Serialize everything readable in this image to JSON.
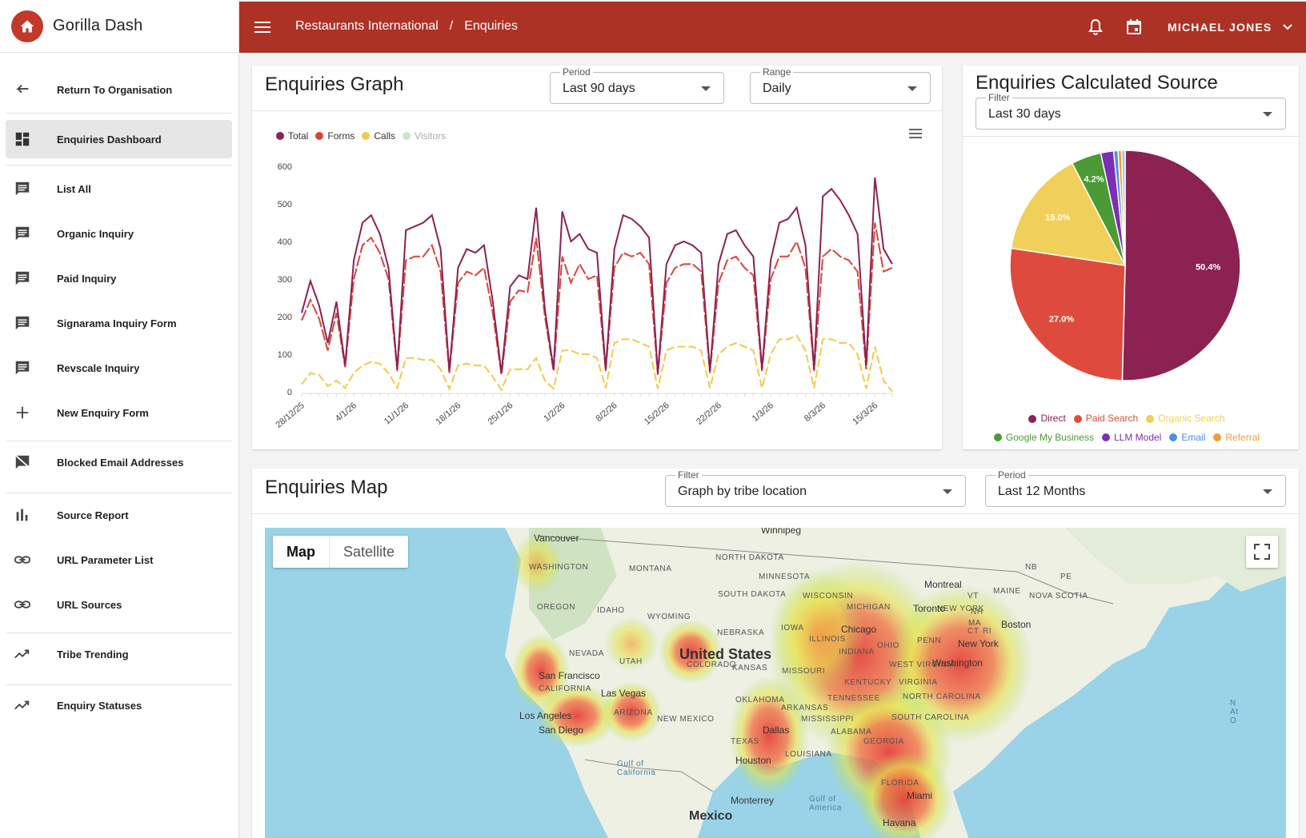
{
  "app": {
    "name": "Gorilla Dash"
  },
  "sidebar": {
    "items": [
      {
        "label": "Return To Organisation",
        "icon": "arrow-left-icon"
      },
      {
        "label": "Enquiries Dashboard",
        "icon": "dashboard-icon",
        "active": true
      },
      {
        "label": "List All",
        "icon": "comment-icon"
      },
      {
        "label": "Organic Inquiry",
        "icon": "comment-icon"
      },
      {
        "label": "Paid Inquiry",
        "icon": "comment-icon"
      },
      {
        "label": "Signarama Inquiry Form",
        "icon": "comment-icon"
      },
      {
        "label": "Revscale Inquiry",
        "icon": "comment-icon"
      },
      {
        "label": "New Enquiry Form",
        "icon": "plus-icon"
      },
      {
        "label": "Blocked Email Addresses",
        "icon": "comment-blocked-icon"
      },
      {
        "label": "Source Report",
        "icon": "bar-chart-icon"
      },
      {
        "label": "URL Parameter List",
        "icon": "link-icon"
      },
      {
        "label": "URL Sources",
        "icon": "link-icon"
      },
      {
        "label": "Tribe Trending",
        "icon": "trending-icon"
      },
      {
        "label": "Enquiry Statuses",
        "icon": "trending-icon"
      }
    ]
  },
  "header": {
    "breadcrumb": [
      "Restaurants International",
      "/",
      "Enquiries"
    ],
    "user": "MICHAEL JONES",
    "color": "#ad3226"
  },
  "graph": {
    "title": "Enquiries Graph",
    "period": {
      "label": "Period",
      "value": "Last 90 days"
    },
    "range": {
      "label": "Range",
      "value": "Daily"
    }
  },
  "source": {
    "title": "Enquiries Calculated Source",
    "filter": {
      "label": "Filter",
      "value": "Last 30 days"
    }
  },
  "map_section": {
    "title": "Enquiries Map",
    "filter": {
      "label": "Filter",
      "value": "Graph by tribe location"
    },
    "period": {
      "label": "Period",
      "value": "Last 12 Months"
    },
    "toggle": [
      "Map",
      "Satellite"
    ],
    "labels": [
      "WASHINGTON",
      "MONTANA",
      "NORTH DAKOTA",
      "MINNESOTA",
      "SOUTH DAKOTA",
      "OREGON",
      "IDAHO",
      "WYOMING",
      "WISCONSIN",
      "MICHIGAN",
      "NEBRASKA",
      "IOWA",
      "NEVADA",
      "UTAH",
      "COLORADO",
      "KANSAS",
      "MISSOURI",
      "ILLINOIS",
      "INDIANA",
      "OHIO",
      "PENN",
      "NEW YORK",
      "MAINE",
      "NOVA SCOTIA",
      "NB",
      "PE",
      "VT",
      "NH",
      "MA",
      "CT",
      "RI",
      "CALIFORNIA",
      "ARIZONA",
      "NEW MEXICO",
      "OKLAHOMA",
      "ARKANSAS",
      "MISSISSIPPI",
      "ALABAMA",
      "GEORGIA",
      "TENNESSEE",
      "KENTUCKY",
      "WEST VIRGINIA",
      "VIRGINIA",
      "NORTH CAROLINA",
      "SOUTH CAROLINA",
      "TEXAS",
      "LOUISIANA",
      "FLORIDA"
    ],
    "cities": [
      "Vancouver",
      "Winnipeg",
      "Montreal",
      "Toronto",
      "Boston",
      "New York",
      "Washington",
      "Chicago",
      "San Francisco",
      "Las Vegas",
      "Los Angeles",
      "San Diego",
      "Dallas",
      "Houston",
      "Monterrey",
      "Miami",
      "Havana"
    ],
    "big_labels": [
      "United States",
      "Mexico"
    ],
    "water_labels": [
      "Gulf of California",
      "Gulf of America",
      "N At O"
    ]
  },
  "chart_data": [
    {
      "type": "line",
      "title": "",
      "x_ticks": [
        "28/12/25",
        "4/1/26",
        "11/1/26",
        "18/1/26",
        "25/1/26",
        "1/2/26",
        "8/2/26",
        "15/2/26",
        "22/2/26",
        "1/3/26",
        "8/3/26",
        "15/3/26"
      ],
      "y_ticks": [
        "0",
        "100",
        "200",
        "300",
        "400",
        "500",
        "600"
      ],
      "ylim": [
        0,
        600
      ],
      "series": [
        {
          "name": "Total",
          "color": "#8b2252",
          "values": [
            210,
            295,
            230,
            130,
            240,
            70,
            350,
            450,
            470,
            420,
            330,
            60,
            430,
            440,
            450,
            470,
            380,
            55,
            330,
            380,
            370,
            390,
            240,
            50,
            280,
            310,
            300,
            490,
            220,
            60,
            480,
            400,
            420,
            380,
            370,
            60,
            380,
            470,
            460,
            440,
            410,
            50,
            340,
            390,
            400,
            390,
            370,
            55,
            340,
            420,
            430,
            390,
            360,
            60,
            350,
            450,
            460,
            490,
            390,
            60,
            520,
            540,
            510,
            470,
            420,
            70,
            570,
            380,
            340
          ]
        },
        {
          "name": "Forms",
          "color": "#d9453a",
          "values": [
            190,
            245,
            195,
            110,
            210,
            65,
            300,
            390,
            410,
            370,
            300,
            55,
            350,
            360,
            360,
            390,
            320,
            50,
            290,
            320,
            310,
            330,
            210,
            45,
            240,
            270,
            265,
            410,
            200,
            55,
            360,
            290,
            340,
            300,
            310,
            55,
            330,
            370,
            360,
            370,
            340,
            45,
            290,
            330,
            340,
            340,
            320,
            50,
            290,
            350,
            360,
            330,
            310,
            55,
            300,
            360,
            360,
            400,
            330,
            55,
            360,
            380,
            360,
            350,
            320,
            60,
            450,
            320,
            330
          ]
        },
        {
          "name": "Calls",
          "color": "#f2c94c",
          "values": [
            20,
            50,
            45,
            15,
            30,
            10,
            50,
            70,
            80,
            75,
            50,
            10,
            90,
            90,
            85,
            85,
            60,
            8,
            70,
            75,
            70,
            70,
            40,
            5,
            60,
            60,
            60,
            90,
            30,
            8,
            110,
            110,
            100,
            100,
            90,
            10,
            130,
            140,
            140,
            130,
            120,
            8,
            110,
            120,
            120,
            120,
            110,
            10,
            100,
            120,
            130,
            120,
            110,
            10,
            100,
            140,
            140,
            150,
            110,
            10,
            140,
            140,
            130,
            130,
            100,
            8,
            120,
            30,
            0
          ]
        },
        {
          "name": "Visitors",
          "color": "#c8e6c9",
          "values": []
        }
      ]
    },
    {
      "type": "pie",
      "title": "",
      "slices": [
        {
          "name": "Direct",
          "value": 50.4,
          "label": "50.4%",
          "color": "#8b2252"
        },
        {
          "name": "Paid Search",
          "value": 27.0,
          "label": "27.0%",
          "color": "#de4b3c"
        },
        {
          "name": "Organic Search",
          "value": 15.0,
          "label": "15.0%",
          "color": "#f0d05a"
        },
        {
          "name": "Google My Business",
          "value": 4.2,
          "label": "4.2%",
          "color": "#4a9a35"
        },
        {
          "name": "LLM Model",
          "value": 1.8,
          "label": "",
          "color": "#7b2fb3"
        },
        {
          "name": "Email",
          "value": 0.6,
          "label": "",
          "color": "#4a8fe0"
        },
        {
          "name": "Referral",
          "value": 0.5,
          "label": "",
          "color": "#f39c33"
        },
        {
          "name": "",
          "value": 0.5,
          "label": "",
          "color": "#9bc7f0"
        }
      ]
    }
  ]
}
